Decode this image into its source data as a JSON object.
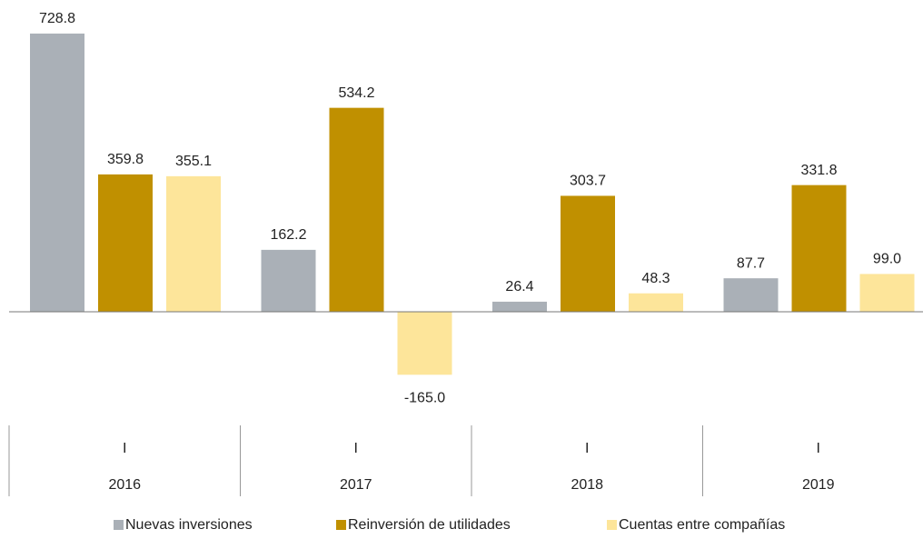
{
  "chart_data": {
    "type": "bar",
    "categories": [
      "I",
      "I",
      "I",
      "I"
    ],
    "years": [
      "2016",
      "2017",
      "2018",
      "2019"
    ],
    "series": [
      {
        "name": "Nuevas inversiones",
        "color": "#aab0b7",
        "values": [
          728.8,
          162.2,
          26.4,
          87.7
        ],
        "value_labels": [
          "728.8",
          "162.2",
          "26.4",
          "87.7"
        ]
      },
      {
        "name": "Reinversión de utilidades",
        "color": "#c09000",
        "values": [
          359.8,
          534.2,
          303.7,
          331.8
        ],
        "value_labels": [
          "359.8",
          "534.2",
          "303.7",
          "331.8"
        ]
      },
      {
        "name": "Cuentas entre compañías",
        "color": "#fde59a",
        "values": [
          355.1,
          -165.0,
          48.3,
          99.0
        ],
        "value_labels": [
          "355.1",
          "-165.0",
          "48.3",
          "99.0"
        ]
      }
    ],
    "ylim": [
      -200,
      800
    ],
    "legend": "bottom"
  }
}
